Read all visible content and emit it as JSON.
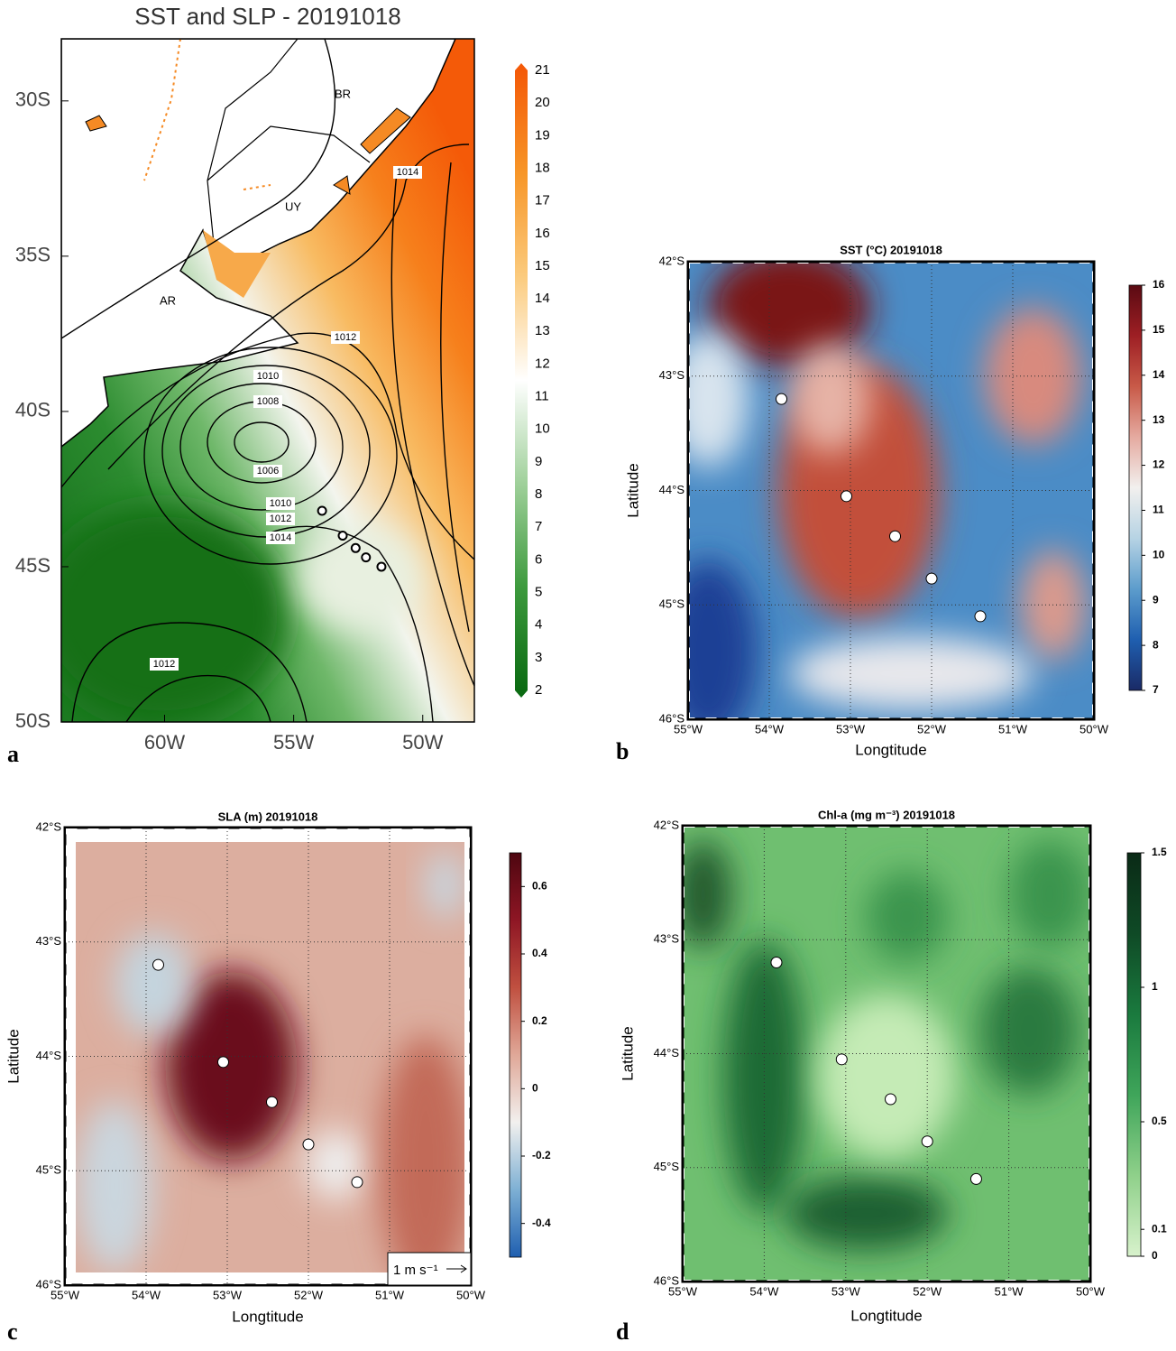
{
  "chart_data": [
    {
      "type": "map",
      "title": "SST and SLP - 20191018",
      "panel_label": "a",
      "xlim": [
        -64,
        -48
      ],
      "ylim": [
        -50,
        -28
      ],
      "xticks": [
        {
          "value": -60,
          "label": "60W"
        },
        {
          "value": -55,
          "label": "55W"
        },
        {
          "value": -50,
          "label": "50W"
        }
      ],
      "yticks": [
        {
          "value": -30,
          "label": "30S"
        },
        {
          "value": -35,
          "label": "35S"
        },
        {
          "value": -40,
          "label": "40S"
        },
        {
          "value": -45,
          "label": "45S"
        },
        {
          "value": -50,
          "label": "50S"
        }
      ],
      "grid": false,
      "colorbar": {
        "lim": [
          2,
          21
        ],
        "ticks": [
          2,
          3,
          4,
          5,
          6,
          7,
          8,
          9,
          10,
          11,
          12,
          13,
          14,
          15,
          16,
          17,
          18,
          19,
          20,
          21
        ],
        "colors": [
          "#0b6b12",
          "#3d9a3d",
          "#9fd09a",
          "#ffffff",
          "#fbcb7e",
          "#f79628",
          "#f45a08"
        ]
      },
      "stations": {
        "x": [
          -53.9,
          -53.1,
          -52.6,
          -52.2,
          -51.6
        ],
        "y": [
          -43.2,
          -44.0,
          -44.4,
          -44.7,
          -45.0
        ]
      },
      "contour_labels": [
        "1014",
        "1012",
        "1010",
        "1008",
        "1006",
        "1010",
        "1012",
        "1014",
        "1012"
      ],
      "region_labels": [
        "BR",
        "UY",
        "AR"
      ]
    },
    {
      "type": "map",
      "title": "SST (°C)  20191018",
      "panel_label": "b",
      "xlabel": "Longtitude",
      "ylabel": "Latitude",
      "xlim": [
        -55,
        -50
      ],
      "ylim": [
        -46,
        -42
      ],
      "xticks": [
        {
          "value": -55,
          "label": "55°W"
        },
        {
          "value": -54,
          "label": "54°W"
        },
        {
          "value": -53,
          "label": "53°W"
        },
        {
          "value": -52,
          "label": "52°W"
        },
        {
          "value": -51,
          "label": "51°W"
        },
        {
          "value": -50,
          "label": "50°W"
        }
      ],
      "yticks": [
        {
          "value": -46,
          "label": "46°S"
        },
        {
          "value": -45,
          "label": "45°S"
        },
        {
          "value": -44,
          "label": "44°S"
        },
        {
          "value": -43,
          "label": "43°S"
        },
        {
          "value": -42,
          "label": "42°S"
        }
      ],
      "grid": true,
      "colorbar": {
        "lim": [
          7,
          16
        ],
        "ticks": [
          7,
          8,
          9,
          10,
          11,
          12,
          13,
          14,
          15,
          16
        ],
        "colors": [
          "#1a2a66",
          "#1f5fb0",
          "#5c9ccc",
          "#b6d3e4",
          "#f2f0ee",
          "#e5aaa0",
          "#c85a48",
          "#9e1f24",
          "#5a0a12"
        ]
      },
      "stations": {
        "x": [
          -53.85,
          -53.05,
          -52.45,
          -52.0,
          -51.4
        ],
        "y": [
          -43.2,
          -44.05,
          -44.4,
          -44.77,
          -45.1
        ]
      }
    },
    {
      "type": "map",
      "title": "SLA (m) 20191018",
      "panel_label": "c",
      "xlabel": "Longtitude",
      "ylabel": "Latitude",
      "xlim": [
        -55,
        -50
      ],
      "ylim": [
        -46,
        -42
      ],
      "xticks": [
        {
          "value": -55,
          "label": "55°W"
        },
        {
          "value": -54,
          "label": "54°W"
        },
        {
          "value": -53,
          "label": "53°W"
        },
        {
          "value": -52,
          "label": "52°W"
        },
        {
          "value": -51,
          "label": "51°W"
        },
        {
          "value": -50,
          "label": "50°W"
        }
      ],
      "yticks": [
        {
          "value": -46,
          "label": "46°S"
        },
        {
          "value": -45,
          "label": "45°S"
        },
        {
          "value": -44,
          "label": "44°S"
        },
        {
          "value": -43,
          "label": "43°S"
        },
        {
          "value": -42,
          "label": "42°S"
        }
      ],
      "grid": true,
      "colorbar": {
        "lim": [
          -0.5,
          0.7
        ],
        "ticks": [
          -0.4,
          -0.2,
          0,
          0.2,
          0.4,
          0.6
        ],
        "colors": [
          "#1f5fb0",
          "#7eb0d4",
          "#f2f0ee",
          "#e0a898",
          "#c05040",
          "#8e1624",
          "#4e0610"
        ]
      },
      "vector_key": "1 m s⁻¹",
      "stations": {
        "x": [
          -53.85,
          -53.05,
          -52.45,
          -52.0,
          -51.4
        ],
        "y": [
          -43.2,
          -44.05,
          -44.4,
          -44.77,
          -45.1
        ]
      }
    },
    {
      "type": "map",
      "title": "Chl-a (mg m⁻³)  20191018",
      "panel_label": "d",
      "xlabel": "Longtitude",
      "ylabel": "Latitude",
      "xlim": [
        -55,
        -50
      ],
      "ylim": [
        -46,
        -42
      ],
      "xticks": [
        {
          "value": -55,
          "label": "55°W"
        },
        {
          "value": -54,
          "label": "54°W"
        },
        {
          "value": -53,
          "label": "53°W"
        },
        {
          "value": -52,
          "label": "52°W"
        },
        {
          "value": -51,
          "label": "51°W"
        },
        {
          "value": -50,
          "label": "50°W"
        }
      ],
      "yticks": [
        {
          "value": -46,
          "label": "46°S"
        },
        {
          "value": -45,
          "label": "45°S"
        },
        {
          "value": -44,
          "label": "44°S"
        },
        {
          "value": -43,
          "label": "43°S"
        },
        {
          "value": -42,
          "label": "42°S"
        }
      ],
      "grid": true,
      "colorbar": {
        "lim": [
          0,
          1.5
        ],
        "ticks": [
          0,
          0.1,
          0.5,
          1,
          1.5
        ],
        "colors": [
          "#d8f2cc",
          "#8fd08a",
          "#3fa55a",
          "#1a7a3e",
          "#0f4a26",
          "#0a2a16"
        ]
      },
      "stations": {
        "x": [
          -53.85,
          -53.05,
          -52.45,
          -52.0,
          -51.4
        ],
        "y": [
          -43.2,
          -44.05,
          -44.4,
          -44.77,
          -45.1
        ]
      }
    }
  ]
}
